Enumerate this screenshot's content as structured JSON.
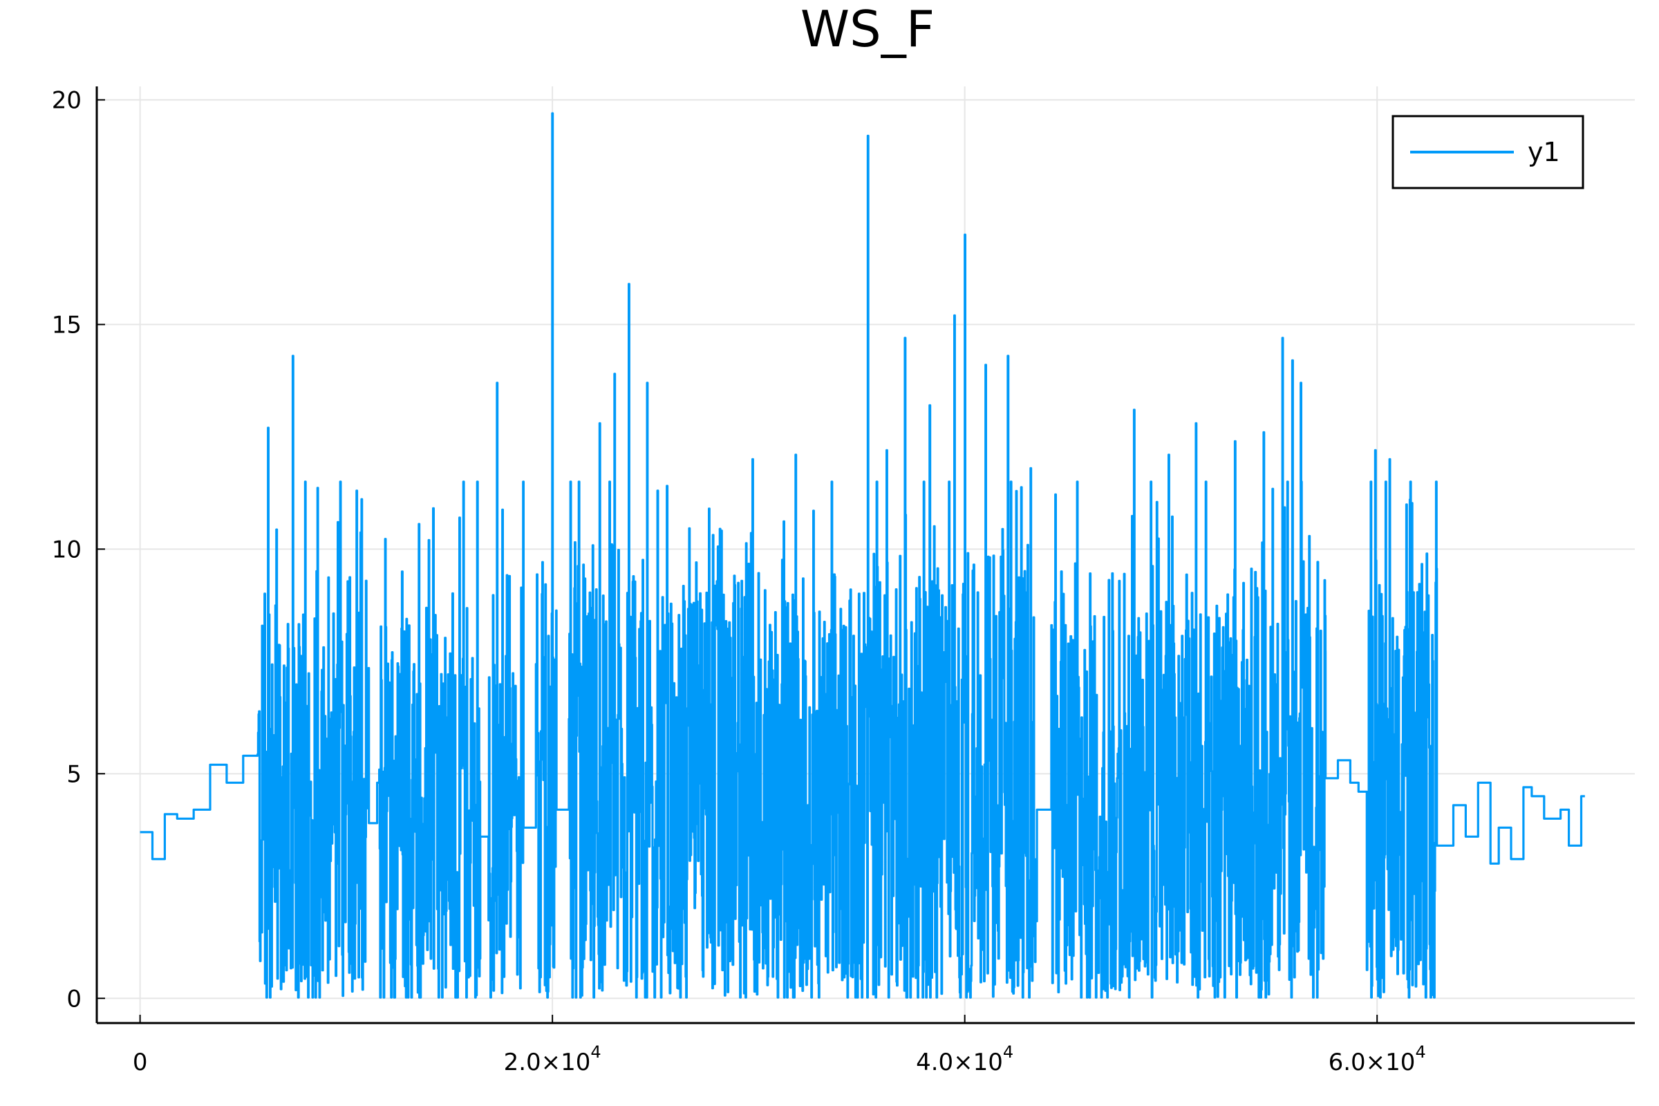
{
  "chart_data": {
    "type": "line",
    "title": "WS_F",
    "xlabel": "",
    "ylabel": "",
    "xlim": [
      -2100,
      72500
    ],
    "ylim": [
      -0.55,
      20.3
    ],
    "grid": true,
    "legend_position": "top-right",
    "line_style": "steps",
    "x_ticks": [
      {
        "value": 0,
        "label": "0"
      },
      {
        "value": 20000,
        "label": "2.0×10",
        "exp": "4"
      },
      {
        "value": 40000,
        "label": "4.0×10",
        "exp": "4"
      },
      {
        "value": 60000,
        "label": "6.0×10",
        "exp": "4"
      }
    ],
    "y_ticks": [
      {
        "value": 0,
        "label": "0"
      },
      {
        "value": 5,
        "label": "5"
      },
      {
        "value": 10,
        "label": "10"
      },
      {
        "value": 15,
        "label": "15"
      },
      {
        "value": 20,
        "label": "20"
      }
    ],
    "series": [
      {
        "name": "y1",
        "color": "#009af9",
        "x_start": 0,
        "x_end": 70080,
        "segments": [
          {
            "x_from": 0,
            "x_to": 5700,
            "mode": "calm",
            "anchors": [
              [
                0,
                3.7
              ],
              [
                400,
                3.1
              ],
              [
                1000,
                4.1
              ],
              [
                1600,
                4.0
              ],
              [
                2400,
                4.2
              ],
              [
                3200,
                5.2
              ],
              [
                4000,
                4.8
              ],
              [
                4800,
                5.4
              ],
              [
                5700,
                5.0
              ]
            ]
          },
          {
            "x_from": 5700,
            "x_to": 11100,
            "mode": "noisy",
            "mean": 4.2,
            "amp": 5.5
          },
          {
            "x_from": 11100,
            "x_to": 11600,
            "mode": "calm",
            "anchors": [
              [
                11100,
                3.9
              ],
              [
                11350,
                4.8
              ],
              [
                11600,
                4.8
              ]
            ]
          },
          {
            "x_from": 11600,
            "x_to": 16500,
            "mode": "noisy",
            "mean": 4.0,
            "amp": 5.5
          },
          {
            "x_from": 16500,
            "x_to": 16900,
            "mode": "calm",
            "anchors": [
              [
                16500,
                3.6
              ],
              [
                16900,
                3.7
              ]
            ]
          },
          {
            "x_from": 16900,
            "x_to": 18600,
            "mode": "noisy",
            "mean": 4.2,
            "amp": 5.5
          },
          {
            "x_from": 18600,
            "x_to": 19200,
            "mode": "calm",
            "anchors": [
              [
                18600,
                3.8
              ],
              [
                19200,
                4.1
              ]
            ]
          },
          {
            "x_from": 19200,
            "x_to": 20200,
            "mode": "noisy",
            "mean": 4.4,
            "amp": 6.0
          },
          {
            "x_from": 20200,
            "x_to": 20800,
            "mode": "calm",
            "anchors": [
              [
                20200,
                4.2
              ],
              [
                20800,
                4.3
              ]
            ]
          },
          {
            "x_from": 20800,
            "x_to": 43500,
            "mode": "noisy",
            "mean": 4.6,
            "amp": 6.2
          },
          {
            "x_from": 43500,
            "x_to": 44200,
            "mode": "calm",
            "anchors": [
              [
                43500,
                4.2
              ],
              [
                44200,
                3.6
              ]
            ]
          },
          {
            "x_from": 44200,
            "x_to": 57500,
            "mode": "noisy",
            "mean": 4.3,
            "amp": 6.0
          },
          {
            "x_from": 57500,
            "x_to": 59500,
            "mode": "calm",
            "anchors": [
              [
                57500,
                4.9
              ],
              [
                58000,
                5.3
              ],
              [
                58500,
                4.8
              ],
              [
                59000,
                4.6
              ],
              [
                59500,
                5.1
              ]
            ]
          },
          {
            "x_from": 59500,
            "x_to": 62900,
            "mode": "noisy",
            "mean": 4.3,
            "amp": 6.0
          },
          {
            "x_from": 62900,
            "x_to": 70080,
            "mode": "calm",
            "anchors": [
              [
                62900,
                3.4
              ],
              [
                63500,
                4.3
              ],
              [
                64200,
                3.6
              ],
              [
                64800,
                4.8
              ],
              [
                65300,
                3.0
              ],
              [
                65800,
                3.8
              ],
              [
                66300,
                3.1
              ],
              [
                66900,
                4.7
              ],
              [
                67400,
                4.5
              ],
              [
                68000,
                4.0
              ],
              [
                68700,
                4.2
              ],
              [
                69200,
                3.4
              ],
              [
                69700,
                4.5
              ],
              [
                70080,
                3.7
              ]
            ]
          }
        ],
        "peaks": [
          [
            6200,
            12.7
          ],
          [
            7400,
            14.3
          ],
          [
            8000,
            11.5
          ],
          [
            9600,
            10.6
          ],
          [
            10500,
            11.3
          ],
          [
            12700,
            9.5
          ],
          [
            14000,
            10.2
          ],
          [
            15500,
            10.7
          ],
          [
            17300,
            13.7
          ],
          [
            17900,
            9.4
          ],
          [
            19500,
            9.0
          ],
          [
            20000,
            19.7
          ],
          [
            22300,
            12.8
          ],
          [
            23000,
            13.9
          ],
          [
            23700,
            15.9
          ],
          [
            24600,
            13.7
          ],
          [
            25100,
            11.3
          ],
          [
            27600,
            10.9
          ],
          [
            29700,
            12.0
          ],
          [
            31800,
            12.1
          ],
          [
            35300,
            19.2
          ],
          [
            36200,
            12.2
          ],
          [
            37100,
            14.7
          ],
          [
            38300,
            13.2
          ],
          [
            39500,
            15.2
          ],
          [
            40000,
            17.0
          ],
          [
            41000,
            14.1
          ],
          [
            42100,
            14.3
          ],
          [
            43200,
            11.8
          ],
          [
            48200,
            13.1
          ],
          [
            49900,
            12.1
          ],
          [
            51200,
            12.8
          ],
          [
            53100,
            12.4
          ],
          [
            54500,
            12.6
          ],
          [
            55400,
            14.7
          ],
          [
            55900,
            14.2
          ],
          [
            56300,
            13.7
          ],
          [
            59900,
            12.2
          ],
          [
            60600,
            12.0
          ],
          [
            61600,
            11.1
          ],
          [
            62400,
            9.9
          ]
        ]
      }
    ]
  }
}
